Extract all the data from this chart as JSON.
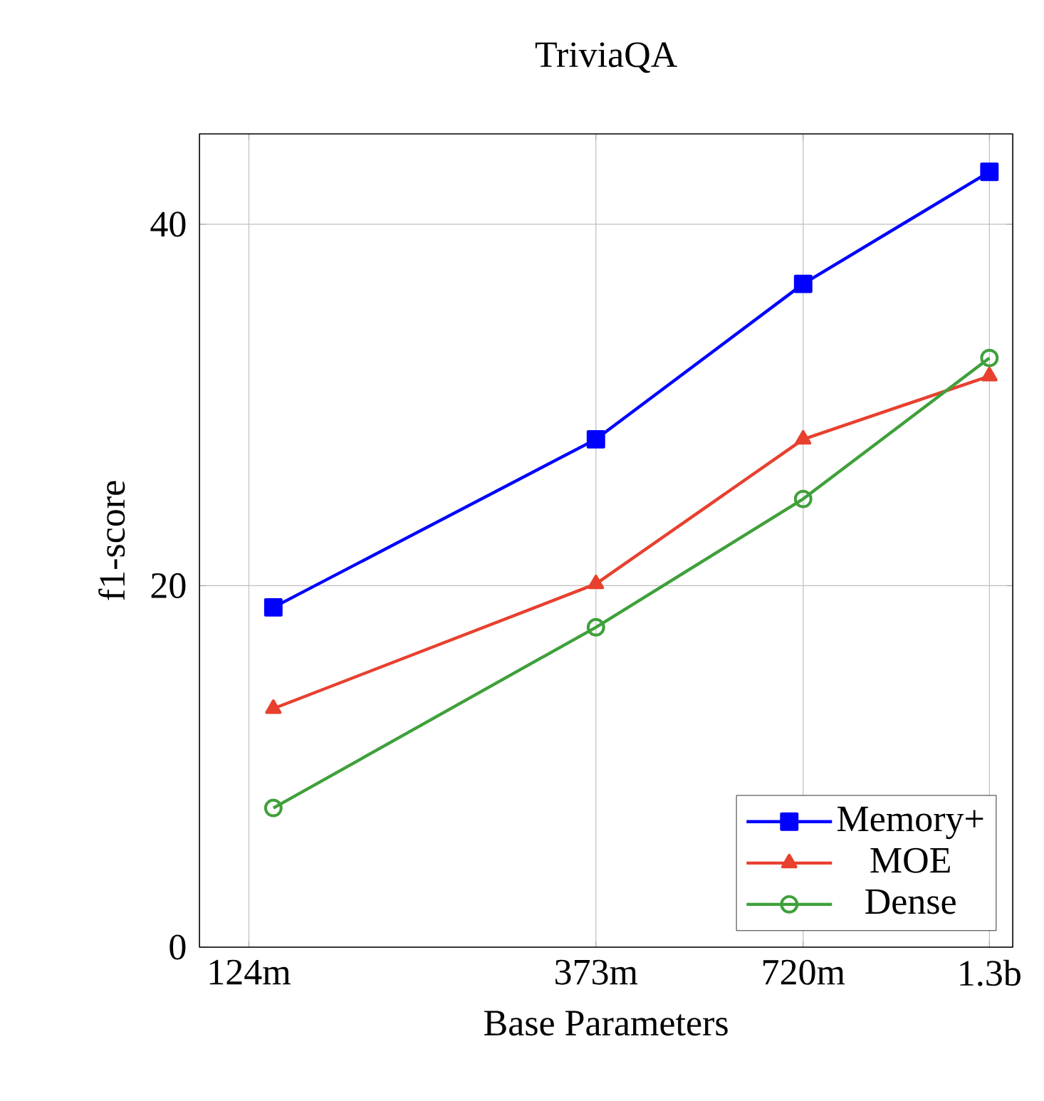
{
  "chart_data": {
    "type": "line",
    "title": "TriviaQA",
    "xlabel": "Base Parameters",
    "ylabel": "f1-score",
    "log": "x",
    "xlim": [
      106000000,
      1400000000
    ],
    "xticks": [
      {
        "value": 124000000,
        "label": "124m"
      },
      {
        "value": 373000000,
        "label": "373m"
      },
      {
        "value": 720000000,
        "label": "720m"
      },
      {
        "value": 1300000000,
        "label": "1.3b"
      }
    ],
    "ylim": [
      0,
      45
    ],
    "yticks": [
      0,
      20,
      40
    ],
    "grid": true,
    "legend": "bottom right",
    "line_style": "solid",
    "series": [
      {
        "name": "Memory+",
        "color": "#0000ff",
        "marker": "square",
        "x": [
          134000000,
          373000000,
          720000000,
          1300000000
        ],
        "values": [
          18.8,
          28.1,
          36.7,
          42.9
        ]
      },
      {
        "name": "MOE",
        "color": "#e8402f",
        "marker": "triangle",
        "x": [
          134000000,
          373000000,
          720000000,
          1300000000
        ],
        "values": [
          13.2,
          20.1,
          28.1,
          31.6
        ]
      },
      {
        "name": "Dense",
        "color": "#3fa03a",
        "marker": "circle",
        "x": [
          134000000,
          373000000,
          720000000,
          1300000000
        ],
        "values": [
          7.7,
          17.7,
          24.8,
          32.6
        ]
      }
    ]
  }
}
